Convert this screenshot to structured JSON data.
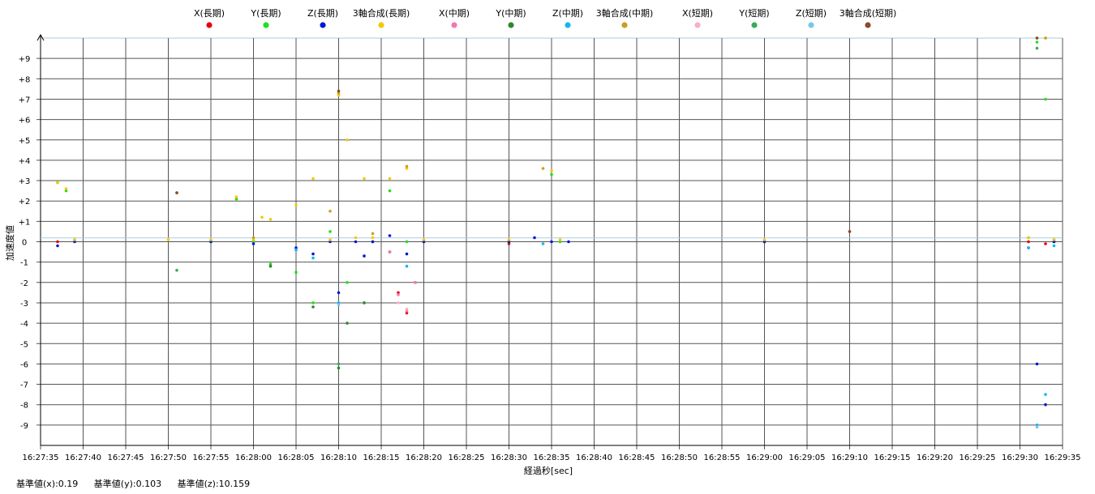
{
  "chart_data": {
    "type": "scatter",
    "title": "",
    "xlabel": "経過秒[sec]",
    "ylabel": "加速度値",
    "xlim": [
      "16:27:35",
      "16:29:35"
    ],
    "ylim": [
      -10,
      10
    ],
    "grid": true,
    "legend_position": "top",
    "x_ticks": [
      "16:27:35",
      "16:27:40",
      "16:27:45",
      "16:27:50",
      "16:27:55",
      "16:28:00",
      "16:28:05",
      "16:28:10",
      "16:28:15",
      "16:28:20",
      "16:28:25",
      "16:28:30",
      "16:28:35",
      "16:28:40",
      "16:28:45",
      "16:28:50",
      "16:28:55",
      "16:29:00",
      "16:29:05",
      "16:29:10",
      "16:29:15",
      "16:29:20",
      "16:29:25",
      "16:29:30",
      "16:29:35"
    ],
    "y_ticks": [
      "+9",
      "+8",
      "+7",
      "+6",
      "+5",
      "+4",
      "+3",
      "+2",
      "+1",
      "0",
      "-1",
      "-2",
      "-3",
      "-4",
      "-5",
      "-6",
      "-7",
      "-8",
      "-9"
    ],
    "series": [
      {
        "name": "X(長期)",
        "color": "#e8000b",
        "x": [
          "16:27:37",
          "16:28:00",
          "16:28:14",
          "16:28:16",
          "16:28:17",
          "16:28:18",
          "16:28:19",
          "16:28:20",
          "16:28:30",
          "16:29:00",
          "16:29:31",
          "16:29:33",
          "16:29:34"
        ],
        "y": [
          0.0,
          0.0,
          0.0,
          -0.5,
          -2.5,
          -3.5,
          -2.0,
          0.0,
          -0.1,
          0.0,
          0.0,
          -0.1,
          0.0
        ]
      },
      {
        "name": "Y(長期)",
        "color": "#1ee01e",
        "x": [
          "16:27:37",
          "16:27:38",
          "16:27:39",
          "16:27:55",
          "16:27:58",
          "16:28:00",
          "16:28:02",
          "16:28:05",
          "16:28:07",
          "16:28:09",
          "16:28:11",
          "16:28:13",
          "16:28:14",
          "16:28:16",
          "16:28:18",
          "16:28:20",
          "16:28:30",
          "16:28:35",
          "16:28:36",
          "16:29:00",
          "16:29:31",
          "16:29:32",
          "16:29:33",
          "16:29:34"
        ],
        "y": [
          2.9,
          2.5,
          0.1,
          0.0,
          2.1,
          0.0,
          -1.1,
          -1.5,
          -3.0,
          0.5,
          -2.0,
          -3.0,
          0.0,
          2.5,
          0.0,
          0.0,
          0.0,
          3.3,
          0.0,
          0.0,
          0.2,
          9.8,
          7.0,
          0.1
        ]
      },
      {
        "name": "Z(長期)",
        "color": "#0019d6",
        "x": [
          "16:27:37",
          "16:27:39",
          "16:27:55",
          "16:28:00",
          "16:28:05",
          "16:28:07",
          "16:28:09",
          "16:28:10",
          "16:28:12",
          "16:28:13",
          "16:28:14",
          "16:28:16",
          "16:28:18",
          "16:28:20",
          "16:28:30",
          "16:28:33",
          "16:28:35",
          "16:28:37",
          "16:29:00",
          "16:29:31",
          "16:29:32",
          "16:29:33",
          "16:29:34"
        ],
        "y": [
          -0.2,
          0.0,
          0.0,
          -0.1,
          -0.3,
          -0.6,
          0.0,
          -2.5,
          0.0,
          -0.7,
          0.0,
          0.3,
          -0.6,
          0.0,
          0.0,
          0.2,
          0.0,
          0.0,
          0.0,
          -0.3,
          -6.0,
          -8.0,
          0.0
        ]
      },
      {
        "name": "3軸合成(長期)",
        "color": "#f5c800",
        "x": [
          "16:27:37",
          "16:27:38",
          "16:27:39",
          "16:27:50",
          "16:27:55",
          "16:27:58",
          "16:28:00",
          "16:28:01",
          "16:28:02",
          "16:28:05",
          "16:28:07",
          "16:28:09",
          "16:28:10",
          "16:28:11",
          "16:28:12",
          "16:28:13",
          "16:28:14",
          "16:28:16",
          "16:28:18",
          "16:28:20",
          "16:28:30",
          "16:28:35",
          "16:28:36",
          "16:29:00",
          "16:29:31",
          "16:29:32",
          "16:29:33",
          "16:29:34"
        ],
        "y": [
          2.9,
          2.6,
          0.1,
          0.1,
          0.1,
          2.2,
          0.1,
          1.2,
          1.1,
          1.8,
          3.1,
          0.1,
          7.2,
          5.0,
          0.2,
          3.1,
          0.2,
          3.1,
          3.6,
          0.1,
          0.1,
          3.5,
          0.1,
          0.1,
          0.2,
          10.0,
          10.0,
          0.1
        ]
      },
      {
        "name": "X(中期)",
        "color": "#f277b4",
        "x": [
          "16:28:16",
          "16:28:17",
          "16:28:18",
          "16:28:19"
        ],
        "y": [
          -0.5,
          -2.6,
          -3.4,
          -2.0
        ]
      },
      {
        "name": "Y(中期)",
        "color": "#2a8a2a",
        "x": [
          "16:28:02",
          "16:28:07",
          "16:28:10",
          "16:28:11",
          "16:28:13"
        ],
        "y": [
          -1.2,
          -3.2,
          -6.2,
          -4.0,
          -3.0
        ]
      },
      {
        "name": "Z(中期)",
        "color": "#16b7f0",
        "x": [
          "16:28:05",
          "16:28:07",
          "16:28:10",
          "16:28:18",
          "16:28:34",
          "16:29:31",
          "16:29:32",
          "16:29:33",
          "16:29:34"
        ],
        "y": [
          -0.4,
          -0.8,
          -3.0,
          -1.2,
          -0.1,
          -0.3,
          -9.0,
          -7.5,
          -0.2
        ]
      },
      {
        "name": "3軸合成(中期)",
        "color": "#c8a01e",
        "x": [
          "16:27:51",
          "16:28:00",
          "16:28:09",
          "16:28:10",
          "16:28:14",
          "16:28:18",
          "16:28:34",
          "16:29:10",
          "16:29:32",
          "16:29:33"
        ],
        "y": [
          2.4,
          0.2,
          1.5,
          7.3,
          0.4,
          3.7,
          3.6,
          0.5,
          10.0,
          10.0
        ]
      },
      {
        "name": "X(短期)",
        "color": "#f7b0c4",
        "x": [
          "16:28:17",
          "16:28:18"
        ],
        "y": [
          -3.0,
          -3.3
        ]
      },
      {
        "name": "Y(短期)",
        "color": "#3aab5e",
        "x": [
          "16:27:51",
          "16:28:10",
          "16:29:32"
        ],
        "y": [
          -1.4,
          -6.0,
          9.5
        ]
      },
      {
        "name": "Z(短期)",
        "color": "#7cc7e8",
        "x": [
          "16:28:10",
          "16:29:32"
        ],
        "y": [
          -3.1,
          -9.1
        ]
      },
      {
        "name": "3軸合成(短期)",
        "color": "#8b4a2a",
        "x": [
          "16:27:51",
          "16:28:10",
          "16:29:10",
          "16:29:32"
        ],
        "y": [
          2.4,
          7.4,
          0.5,
          10.0
        ]
      }
    ]
  },
  "footer": {
    "base_x": "基準値(x):0.19",
    "base_y": "基準値(y):0.103",
    "base_z": "基準値(z):10.159"
  }
}
